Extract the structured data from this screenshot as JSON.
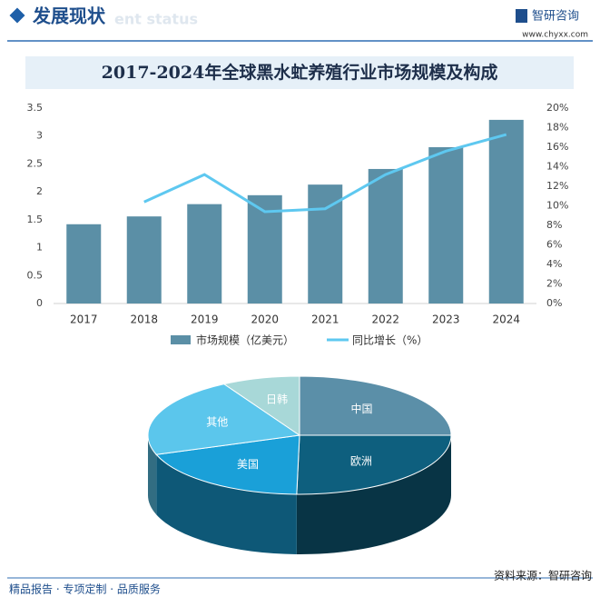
{
  "header": {
    "title": "发展现状",
    "subtitle": "ent status",
    "logo": "智研咨询",
    "url": "www.chyxx.com"
  },
  "footer": {
    "left": "精品报告 · 专项定制 · 品质服务",
    "source": "资料来源：智研咨询"
  },
  "chart_data": [
    {
      "type": "bar-line",
      "title": "2017-2024年全球黑水虻养殖行业市场规模及构成",
      "categories": [
        "2017",
        "2018",
        "2019",
        "2020",
        "2021",
        "2022",
        "2023",
        "2024"
      ],
      "series": [
        {
          "name": "市场规模（亿美元）",
          "type": "bar",
          "color": "#5b8fa6",
          "values": [
            1.42,
            1.56,
            1.78,
            1.94,
            2.13,
            2.41,
            2.8,
            3.29
          ]
        },
        {
          "name": "同比增长（%）",
          "type": "line",
          "axis": "y2",
          "color": "#5ec8f0",
          "values": [
            null,
            10.4,
            13.2,
            9.4,
            9.7,
            13.2,
            15.6,
            17.3
          ]
        }
      ],
      "ylim": [
        0,
        3.5
      ],
      "yticks": [
        0,
        0.5,
        1,
        1.5,
        2,
        2.5,
        3,
        3.5
      ],
      "y2lim": [
        0,
        20
      ],
      "y2ticks": [
        {
          "value": 0,
          "label": "0%"
        },
        {
          "value": 2,
          "label": "2%"
        },
        {
          "value": 4,
          "label": "4%"
        },
        {
          "value": 6,
          "label": "6%"
        },
        {
          "value": 8,
          "label": "8%"
        },
        {
          "value": 10,
          "label": "10%"
        },
        {
          "value": 12,
          "label": "12%"
        },
        {
          "value": 14,
          "label": "14%"
        },
        {
          "value": 16,
          "label": "16%"
        },
        {
          "value": 18,
          "label": "18%"
        },
        {
          "value": 20,
          "label": "20%"
        }
      ],
      "legend": "bottom"
    },
    {
      "type": "pie",
      "style": "3d",
      "categories": [
        "中国",
        "欧洲",
        "美国",
        "其他",
        "日韩"
      ],
      "values": [
        25,
        25.3,
        19.4,
        22,
        8.3
      ],
      "colors": [
        "#5b8fa8",
        "#0e5f7e",
        "#1aa0d8",
        "#5bc6ec",
        "#a8d8d8"
      ]
    }
  ]
}
